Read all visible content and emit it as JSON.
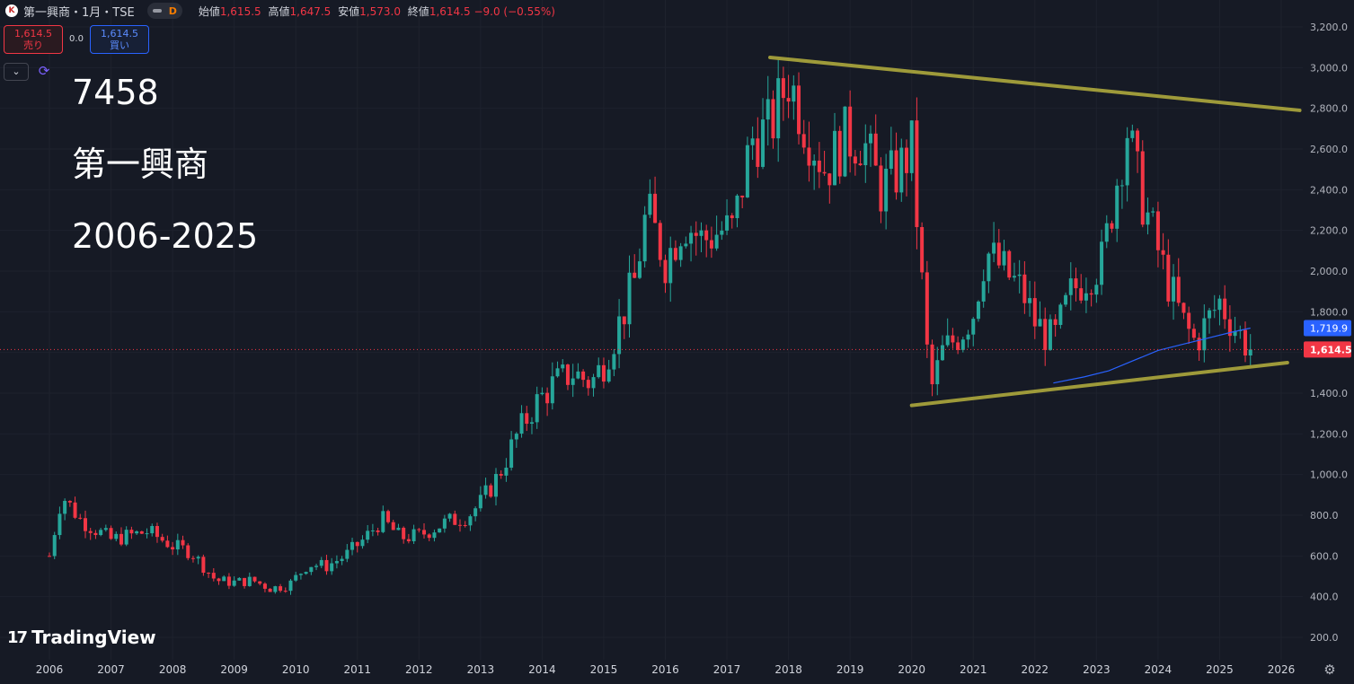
{
  "header": {
    "logo_text": "K",
    "symbol": "第一興商・1月・TSE",
    "interval_badge": "D",
    "ohlc": [
      {
        "label": "始値",
        "value": "1,615.5"
      },
      {
        "label": "高値",
        "value": "1,647.5"
      },
      {
        "label": "安値",
        "value": "1,573.0"
      },
      {
        "label": "終値",
        "value": "1,614.5"
      }
    ],
    "change": "−9.0 (−0.55%)"
  },
  "trade": {
    "sell_price": "1,614.5",
    "sell_label": "売り",
    "spread": "0.0",
    "buy_price": "1,614.5",
    "buy_label": "買い"
  },
  "controls": {
    "dropdown_icon": "chevron-down-icon",
    "sync_icon": "sync-icon",
    "settings_icon": "gear-icon"
  },
  "overlay": {
    "code": "7458",
    "name": "第一興商",
    "range": "2006-2025"
  },
  "branding": {
    "text": "TradingView",
    "mark": "17"
  },
  "colors": {
    "bg": "#161a25",
    "up": "#26a69a",
    "down": "#f23645",
    "trendline": "#9e9a3a",
    "ma": "#2962ff"
  },
  "chart_data": {
    "type": "candlestick",
    "title": "",
    "interval": "1M",
    "x_ticks": [
      "2006",
      "2007",
      "2008",
      "2009",
      "2010",
      "2011",
      "2012",
      "2013",
      "2014",
      "2015",
      "2016",
      "2017",
      "2018",
      "2019",
      "2020",
      "2021",
      "2022",
      "2023",
      "2024",
      "2025",
      "2026"
    ],
    "y_ticks": [
      "200.0",
      "400.0",
      "600.0",
      "800.0",
      "1,000.0",
      "1,200.0",
      "1,400.0",
      "1,600.0",
      "1,800.0",
      "2,000.0",
      "2,200.0",
      "2,400.0",
      "2,600.0",
      "2,800.0",
      "3,000.0",
      "3,200.0"
    ],
    "ylim": [
      100,
      3250
    ],
    "xlim": [
      2005.7,
      2026.3
    ],
    "close_path": [
      [
        2006.0,
        600
      ],
      [
        2006.2,
        900
      ],
      [
        2006.5,
        780
      ],
      [
        2006.8,
        720
      ],
      [
        2007.0,
        680
      ],
      [
        2007.3,
        700
      ],
      [
        2007.6,
        720
      ],
      [
        2008.0,
        650
      ],
      [
        2008.3,
        620
      ],
      [
        2008.7,
        480
      ],
      [
        2009.0,
        470
      ],
      [
        2009.3,
        480
      ],
      [
        2009.6,
        440
      ],
      [
        2009.9,
        460
      ],
      [
        2010.2,
        560
      ],
      [
        2010.5,
        550
      ],
      [
        2010.8,
        600
      ],
      [
        2011.1,
        680
      ],
      [
        2011.4,
        780
      ],
      [
        2011.7,
        690
      ],
      [
        2012.0,
        700
      ],
      [
        2012.4,
        760
      ],
      [
        2012.8,
        800
      ],
      [
        2013.0,
        860
      ],
      [
        2013.3,
        1000
      ],
      [
        2013.6,
        1200
      ],
      [
        2013.9,
        1350
      ],
      [
        2014.2,
        1450
      ],
      [
        2014.5,
        1500
      ],
      [
        2014.8,
        1450
      ],
      [
        2015.0,
        1550
      ],
      [
        2015.2,
        1700
      ],
      [
        2015.5,
        1950
      ],
      [
        2015.7,
        2300
      ],
      [
        2016.0,
        2050
      ],
      [
        2016.3,
        2250
      ],
      [
        2016.6,
        2150
      ],
      [
        2016.9,
        2200
      ],
      [
        2017.1,
        2200
      ],
      [
        2017.4,
        2650
      ],
      [
        2017.7,
        2700
      ],
      [
        2018.0,
        2950
      ],
      [
        2018.3,
        2700
      ],
      [
        2018.6,
        2500
      ],
      [
        2018.9,
        2650
      ],
      [
        2019.2,
        2650
      ],
      [
        2019.5,
        2400
      ],
      [
        2019.8,
        2500
      ],
      [
        2020.0,
        2600
      ],
      [
        2020.2,
        1800
      ],
      [
        2020.3,
        1400
      ],
      [
        2020.5,
        1600
      ],
      [
        2020.8,
        1700
      ],
      [
        2021.0,
        1800
      ],
      [
        2021.2,
        2100
      ],
      [
        2021.5,
        2000
      ],
      [
        2021.8,
        1900
      ],
      [
        2022.0,
        1750
      ],
      [
        2022.3,
        1650
      ],
      [
        2022.6,
        1900
      ],
      [
        2022.9,
        2000
      ],
      [
        2023.1,
        2050
      ],
      [
        2023.3,
        2400
      ],
      [
        2023.5,
        2700
      ],
      [
        2023.7,
        2400
      ],
      [
        2023.9,
        2200
      ],
      [
        2024.1,
        2000
      ],
      [
        2024.4,
        1750
      ],
      [
        2024.6,
        1650
      ],
      [
        2024.9,
        1800
      ],
      [
        2025.0,
        1850
      ],
      [
        2025.3,
        1700
      ],
      [
        2025.5,
        1614.5
      ]
    ],
    "trendlines": [
      {
        "from": [
          2017.7,
          3050
        ],
        "to": [
          2026.3,
          2790
        ]
      },
      {
        "from": [
          2020.0,
          1340
        ],
        "to": [
          2026.1,
          1550
        ]
      }
    ],
    "moving_average": [
      [
        2022.3,
        1450
      ],
      [
        2022.8,
        1480
      ],
      [
        2023.2,
        1510
      ],
      [
        2023.6,
        1560
      ],
      [
        2024.0,
        1610
      ],
      [
        2024.4,
        1640
      ],
      [
        2024.8,
        1670
      ],
      [
        2025.2,
        1700
      ],
      [
        2025.5,
        1719.9
      ]
    ],
    "last_price": {
      "label": "1,614.5",
      "value": 1614.5
    },
    "ma_price": {
      "label": "1,719.9",
      "value": 1719.9
    },
    "axis_labels": {
      "x": "",
      "y": ""
    }
  }
}
